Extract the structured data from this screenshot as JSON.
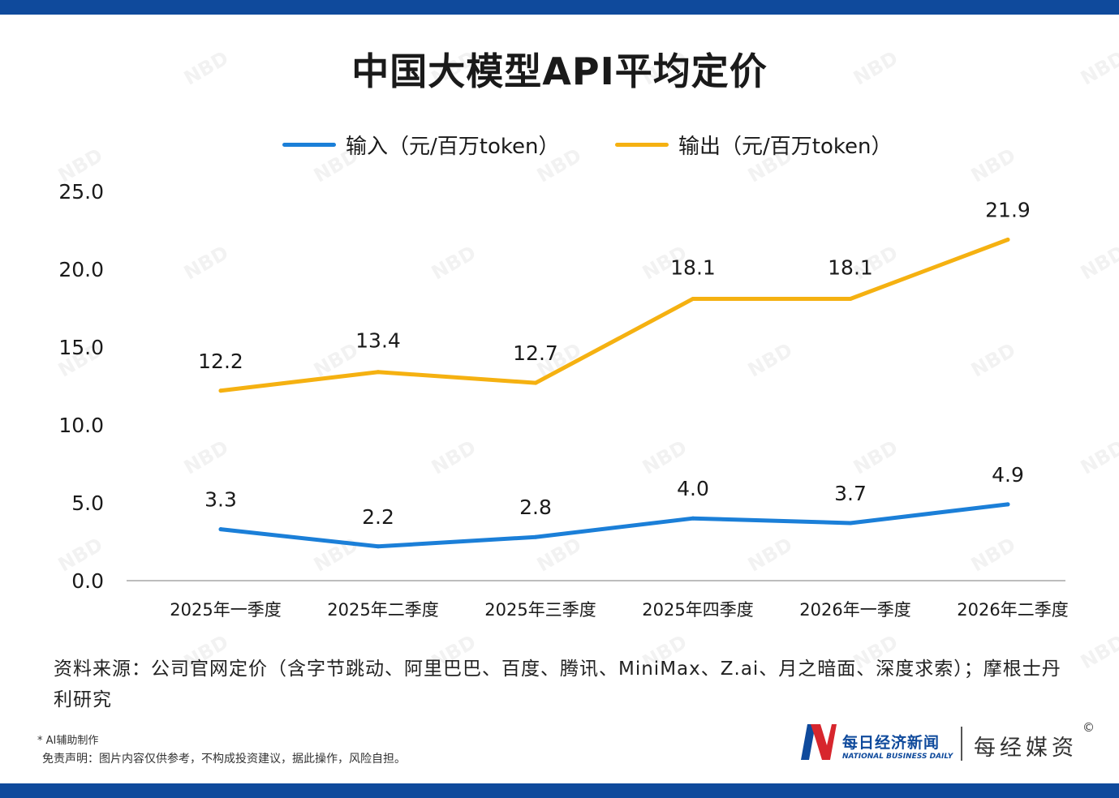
{
  "title": "中国大模型API平均定价",
  "legend": {
    "input": "输入（元/百万token）",
    "output": "输出（元/百万token）"
  },
  "colors": {
    "input": "#1b7fd8",
    "output": "#f5b111",
    "brand": "#0f4a9c",
    "logo_red": "#d7262d"
  },
  "chart_data": {
    "type": "line",
    "title": "中国大模型API平均定价",
    "categories": [
      "2025年一季度",
      "2025年二季度",
      "2025年三季度",
      "2025年四季度",
      "2026年一季度",
      "2026年二季度"
    ],
    "series": [
      {
        "name": "输入（元/百万token）",
        "values": [
          3.3,
          2.2,
          2.8,
          4.0,
          3.7,
          4.9
        ],
        "labels": [
          "3.3",
          "2.2",
          "2.8",
          "4.0",
          "3.7",
          "4.9"
        ]
      },
      {
        "name": "输出（元/百万token）",
        "values": [
          12.2,
          13.4,
          12.7,
          18.1,
          18.1,
          21.9
        ],
        "labels": [
          "12.2",
          "13.4",
          "12.7",
          "18.1",
          "18.1",
          "21.9"
        ]
      }
    ],
    "yticks": [
      "0.0",
      "5.0",
      "10.0",
      "15.0",
      "20.0",
      "25.0"
    ],
    "ylim": [
      0,
      25
    ],
    "grid": false,
    "legend_position": "top"
  },
  "source_text": "资料来源：公司官网定价（含字节跳动、阿里巴巴、百度、腾讯、MiniMax、Z.ai、月之暗面、深度求索）；摩根士丹利研究",
  "ai_note": "* AI辅助制作",
  "disclaimer": "免责声明：图片内容仅供参考，不构成投资建议，据此操作，风险自担。",
  "logo": {
    "cn": "每日经济新闻",
    "en": "NATIONAL BUSINESS DAILY",
    "brand": "每经媒资",
    "copyright": "©"
  },
  "watermark": "NBD"
}
